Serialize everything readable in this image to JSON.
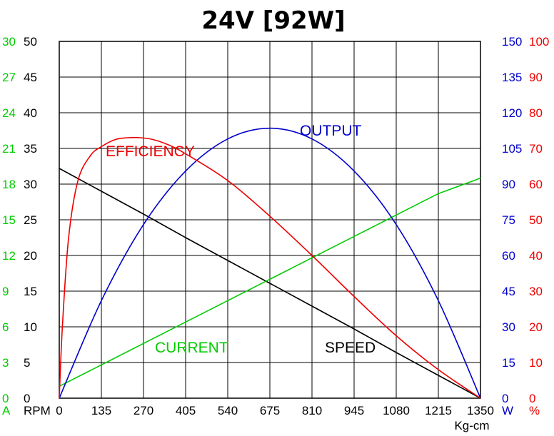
{
  "chart_data": {
    "type": "line",
    "title": "24V [92W]",
    "xlabel": "Kg-cm",
    "xlim": [
      0,
      1350
    ],
    "x_ticks": [
      "0",
      "135",
      "270",
      "405",
      "540",
      "675",
      "810",
      "945",
      "1080",
      "1215",
      "1350"
    ],
    "grid": true,
    "axes": [
      {
        "name": "current",
        "unit": "A",
        "side": "left-outer",
        "color": "#00cc00",
        "min": 0,
        "max": 30,
        "ticks": [
          "0",
          "3",
          "6",
          "9",
          "12",
          "15",
          "18",
          "21",
          "24",
          "27",
          "30"
        ]
      },
      {
        "name": "speed",
        "unit": "RPM",
        "side": "left-inner",
        "color": "#000000",
        "min": 0,
        "max": 50,
        "ticks": [
          "0",
          "5",
          "10",
          "15",
          "20",
          "25",
          "30",
          "35",
          "40",
          "45",
          "50"
        ]
      },
      {
        "name": "output",
        "unit": "W",
        "side": "right-inner",
        "color": "#0000cc",
        "min": 0,
        "max": 150,
        "ticks": [
          "0",
          "15",
          "30",
          "45",
          "60",
          "75",
          "90",
          "105",
          "120",
          "135",
          "150"
        ]
      },
      {
        "name": "efficiency",
        "unit": "%",
        "side": "right-outer",
        "color": "#ee0000",
        "min": 0,
        "max": 100,
        "ticks": [
          "0",
          "10",
          "20",
          "30",
          "40",
          "50",
          "60",
          "70",
          "80",
          "90",
          "100"
        ]
      }
    ],
    "series": [
      {
        "name": "SPEED",
        "axis": "speed",
        "color": "#000000",
        "x": [
          0,
          135,
          270,
          405,
          540,
          675,
          810,
          945,
          1080,
          1215,
          1350
        ],
        "values": [
          32.2,
          29.0,
          25.8,
          22.5,
          19.3,
          16.1,
          12.9,
          9.7,
          6.4,
          3.2,
          0
        ]
      },
      {
        "name": "CURRENT",
        "axis": "current",
        "color": "#00cc00",
        "x": [
          0,
          135,
          270,
          405,
          540,
          675,
          810,
          945,
          1080,
          1215,
          1350
        ],
        "values": [
          1.0,
          2.8,
          4.6,
          6.4,
          8.2,
          10.0,
          11.8,
          13.6,
          15.4,
          17.2,
          18.5
        ]
      },
      {
        "name": "OUTPUT",
        "axis": "output",
        "color": "#0000cc",
        "x": [
          0,
          135,
          270,
          405,
          540,
          675,
          810,
          945,
          1080,
          1215,
          1350
        ],
        "values": [
          0,
          41.0,
          73.0,
          95.5,
          109.0,
          113.5,
          109.0,
          95.5,
          73.0,
          41.0,
          0
        ]
      },
      {
        "name": "EFFICIENCY",
        "axis": "efficiency",
        "color": "#ee0000",
        "x": [
          0,
          10,
          30,
          60,
          100,
          135,
          180,
          220,
          260,
          300,
          350,
          405,
          540,
          675,
          810,
          945,
          1080,
          1215,
          1350
        ],
        "values": [
          0,
          20,
          45,
          61,
          68,
          70.5,
          72.5,
          73.0,
          73.0,
          72.5,
          71.0,
          68.5,
          61.0,
          51.0,
          40.0,
          28.5,
          17.5,
          8.0,
          0
        ]
      }
    ],
    "annotations": [
      "EFFICIENCY",
      "OUTPUT",
      "CURRENT",
      "SPEED"
    ]
  }
}
